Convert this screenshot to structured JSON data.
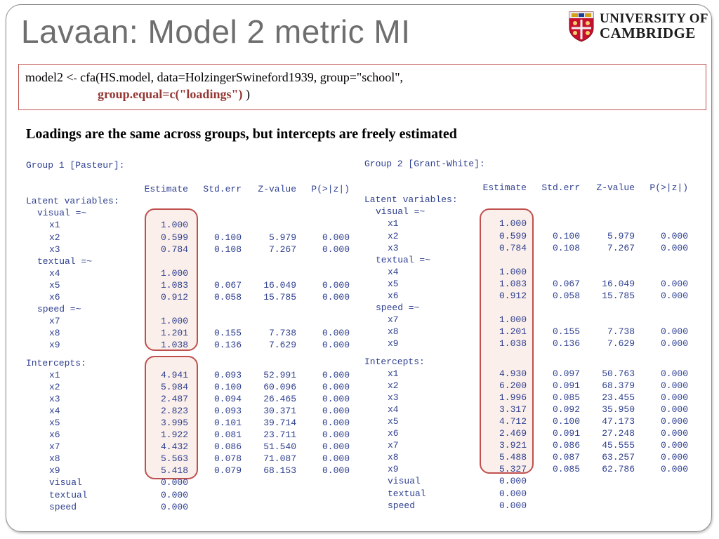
{
  "slide": {
    "title": "Lavaan: Model 2 metric MI",
    "logo": {
      "line1": "UNIVERSITY OF",
      "line2": "CAMBRIDGE",
      "icon": "cambridge-crest-icon"
    },
    "code": {
      "line1_start": "model2 <",
      "line1_arrow": "-",
      "line1_rest": " cfa(HS.model, data=HolzingerSwineford1939, group=\"school\",",
      "line2_highlight": "group.equal=c(\"loadings\")",
      "line2_end": " )"
    },
    "subtitle": "Loadings are the same across groups, but intercepts are freely estimated",
    "colors": {
      "output_text": "#2e3f8f",
      "highlight": "#c0504d",
      "code_highlight": "#953734",
      "title": "#6e6e6e"
    }
  },
  "groups": [
    {
      "header": "Group 1 [Pasteur]:",
      "columns": [
        "Estimate",
        "Std.err",
        "Z-value",
        "P(>|z|)"
      ],
      "latent_title": "Latent variables:",
      "latent": [
        {
          "factor": "visual =~",
          "items": [
            {
              "name": "x1",
              "est": "1.000",
              "se": "",
              "z": "",
              "p": ""
            },
            {
              "name": "x2",
              "est": "0.599",
              "se": "0.100",
              "z": "5.979",
              "p": "0.000"
            },
            {
              "name": "x3",
              "est": "0.784",
              "se": "0.108",
              "z": "7.267",
              "p": "0.000"
            }
          ]
        },
        {
          "factor": "textual =~",
          "items": [
            {
              "name": "x4",
              "est": "1.000",
              "se": "",
              "z": "",
              "p": ""
            },
            {
              "name": "x5",
              "est": "1.083",
              "se": "0.067",
              "z": "16.049",
              "p": "0.000"
            },
            {
              "name": "x6",
              "est": "0.912",
              "se": "0.058",
              "z": "15.785",
              "p": "0.000"
            }
          ]
        },
        {
          "factor": "speed =~",
          "items": [
            {
              "name": "x7",
              "est": "1.000",
              "se": "",
              "z": "",
              "p": ""
            },
            {
              "name": "x8",
              "est": "1.201",
              "se": "0.155",
              "z": "7.738",
              "p": "0.000"
            },
            {
              "name": "x9",
              "est": "1.038",
              "se": "0.136",
              "z": "7.629",
              "p": "0.000"
            }
          ]
        }
      ],
      "intercepts_title": "Intercepts:",
      "intercepts": [
        {
          "name": "x1",
          "est": "4.941",
          "se": "0.093",
          "z": "52.991",
          "p": "0.000"
        },
        {
          "name": "x2",
          "est": "5.984",
          "se": "0.100",
          "z": "60.096",
          "p": "0.000"
        },
        {
          "name": "x3",
          "est": "2.487",
          "se": "0.094",
          "z": "26.465",
          "p": "0.000"
        },
        {
          "name": "x4",
          "est": "2.823",
          "se": "0.093",
          "z": "30.371",
          "p": "0.000"
        },
        {
          "name": "x5",
          "est": "3.995",
          "se": "0.101",
          "z": "39.714",
          "p": "0.000"
        },
        {
          "name": "x6",
          "est": "1.922",
          "se": "0.081",
          "z": "23.711",
          "p": "0.000"
        },
        {
          "name": "x7",
          "est": "4.432",
          "se": "0.086",
          "z": "51.540",
          "p": "0.000"
        },
        {
          "name": "x8",
          "est": "5.563",
          "se": "0.078",
          "z": "71.087",
          "p": "0.000"
        },
        {
          "name": "x9",
          "est": "5.418",
          "se": "0.079",
          "z": "68.153",
          "p": "0.000"
        },
        {
          "name": "visual",
          "est": "0.000",
          "se": "",
          "z": "",
          "p": ""
        },
        {
          "name": "textual",
          "est": "0.000",
          "se": "",
          "z": "",
          "p": ""
        },
        {
          "name": "speed",
          "est": "0.000",
          "se": "",
          "z": "",
          "p": ""
        }
      ]
    },
    {
      "header": "Group 2 [Grant-White]:",
      "columns": [
        "Estimate",
        "Std.err",
        "Z-value",
        "P(>|z|)"
      ],
      "latent_title": "Latent variables:",
      "latent": [
        {
          "factor": "visual =~",
          "items": [
            {
              "name": "x1",
              "est": "1.000",
              "se": "",
              "z": "",
              "p": ""
            },
            {
              "name": "x2",
              "est": "0.599",
              "se": "0.100",
              "z": "5.979",
              "p": "0.000"
            },
            {
              "name": "x3",
              "est": "0.784",
              "se": "0.108",
              "z": "7.267",
              "p": "0.000"
            }
          ]
        },
        {
          "factor": "textual =~",
          "items": [
            {
              "name": "x4",
              "est": "1.000",
              "se": "",
              "z": "",
              "p": ""
            },
            {
              "name": "x5",
              "est": "1.083",
              "se": "0.067",
              "z": "16.049",
              "p": "0.000"
            },
            {
              "name": "x6",
              "est": "0.912",
              "se": "0.058",
              "z": "15.785",
              "p": "0.000"
            }
          ]
        },
        {
          "factor": "speed =~",
          "items": [
            {
              "name": "x7",
              "est": "1.000",
              "se": "",
              "z": "",
              "p": ""
            },
            {
              "name": "x8",
              "est": "1.201",
              "se": "0.155",
              "z": "7.738",
              "p": "0.000"
            },
            {
              "name": "x9",
              "est": "1.038",
              "se": "0.136",
              "z": "7.629",
              "p": "0.000"
            }
          ]
        }
      ],
      "intercepts_title": "Intercepts:",
      "intercepts": [
        {
          "name": "x1",
          "est": "4.930",
          "se": "0.097",
          "z": "50.763",
          "p": "0.000"
        },
        {
          "name": "x2",
          "est": "6.200",
          "se": "0.091",
          "z": "68.379",
          "p": "0.000"
        },
        {
          "name": "x3",
          "est": "1.996",
          "se": "0.085",
          "z": "23.455",
          "p": "0.000"
        },
        {
          "name": "x4",
          "est": "3.317",
          "se": "0.092",
          "z": "35.950",
          "p": "0.000"
        },
        {
          "name": "x5",
          "est": "4.712",
          "se": "0.100",
          "z": "47.173",
          "p": "0.000"
        },
        {
          "name": "x6",
          "est": "2.469",
          "se": "0.091",
          "z": "27.248",
          "p": "0.000"
        },
        {
          "name": "x7",
          "est": "3.921",
          "se": "0.086",
          "z": "45.555",
          "p": "0.000"
        },
        {
          "name": "x8",
          "est": "5.488",
          "se": "0.087",
          "z": "63.257",
          "p": "0.000"
        },
        {
          "name": "x9",
          "est": "5.327",
          "se": "0.085",
          "z": "62.786",
          "p": "0.000"
        },
        {
          "name": "visual",
          "est": "0.000",
          "se": "",
          "z": "",
          "p": ""
        },
        {
          "name": "textual",
          "est": "0.000",
          "se": "",
          "z": "",
          "p": ""
        },
        {
          "name": "speed",
          "est": "0.000",
          "se": "",
          "z": "",
          "p": ""
        }
      ]
    }
  ]
}
